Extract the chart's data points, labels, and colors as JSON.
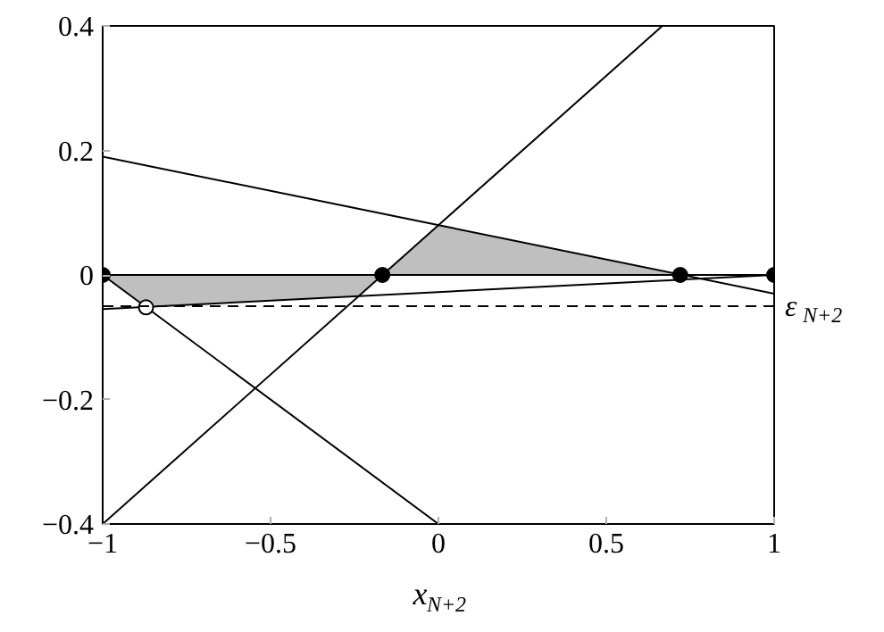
{
  "chart_data": {
    "type": "line",
    "xlabel": "x$_{N+2}$",
    "xlim": [
      -1,
      1
    ],
    "ylim": [
      -0.4,
      0.4
    ],
    "xticks": [
      {
        "value": -1,
        "label": "−1"
      },
      {
        "value": -0.5,
        "label": "−0.5"
      },
      0,
      0.5,
      1
    ],
    "yticks": [
      {
        "value": -0.4,
        "label": "−0.4"
      },
      {
        "value": -0.2,
        "label": "−0.2"
      },
      0,
      0.2,
      0.4
    ],
    "grid": false,
    "line_style": "solid",
    "series": [
      {
        "type": "area",
        "color": "#bfbfbf",
        "x": [
          -1,
          -0.871,
          -0.238,
          -0.167
        ],
        "values": [
          0,
          -0.052,
          -0.034,
          0
        ]
      },
      {
        "type": "area",
        "color": "#bfbfbf",
        "x": [
          -0.167,
          0,
          0.72
        ],
        "values": [
          0,
          0.08,
          0
        ]
      },
      {
        "type": "line",
        "color": "#000000",
        "x": [
          -1,
          0.667
        ],
        "values": [
          -0.4,
          0.4
        ]
      },
      {
        "type": "line",
        "color": "#000000",
        "x": [
          -1,
          1
        ],
        "values": [
          0.19,
          -0.03
        ]
      },
      {
        "type": "line",
        "color": "#000000",
        "x": [
          -1,
          0
        ],
        "values": [
          0,
          -0.4
        ]
      },
      {
        "type": "line",
        "color": "#000000",
        "x": [
          -1,
          1
        ],
        "values": [
          -0.055,
          0
        ]
      },
      {
        "type": "line",
        "color": "#000000",
        "x": [
          -1,
          1
        ],
        "values": [
          0,
          0
        ]
      },
      {
        "type": "scatter",
        "color": "#000000",
        "marker": "circle",
        "x": [
          -1,
          -0.167,
          0.72,
          1
        ],
        "values": [
          0,
          0,
          0,
          0
        ]
      },
      {
        "type": "scatter",
        "color": "#ffffff",
        "marker": "circle",
        "x": [
          -0.871
        ],
        "values": [
          -0.052
        ]
      }
    ],
    "ref_lines": [
      {
        "axis": "y",
        "value": -0.05,
        "label": "ε$_{N+2}$",
        "line_style": "dashed",
        "color": "#000000"
      }
    ]
  }
}
